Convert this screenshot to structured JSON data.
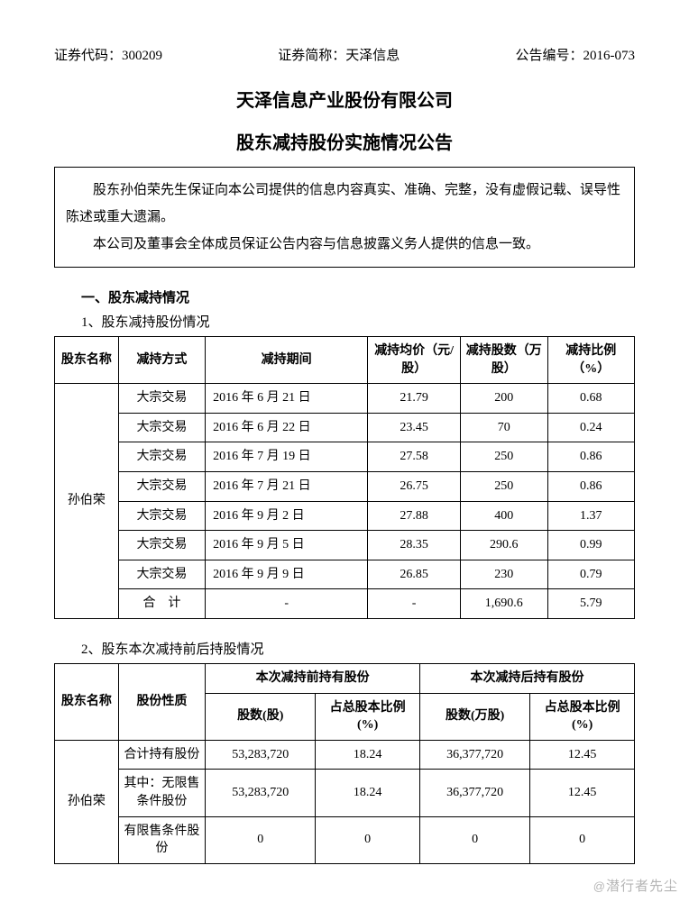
{
  "header": {
    "code_label": "证券代码：",
    "code_value": "300209",
    "short_label": "证券简称：",
    "short_value": "天泽信息",
    "ann_label": "公告编号：",
    "ann_value": "2016-073"
  },
  "titles": {
    "company": "天泽信息产业股份有限公司",
    "subject": "股东减持股份实施情况公告"
  },
  "statement": {
    "p1": "股东孙伯荣先生保证向本公司提供的信息内容真实、准确、完整，没有虚假记载、误导性陈述或重大遗漏。",
    "p2": "本公司及董事会全体成员保证公告内容与信息披露义务人提供的信息一致。"
  },
  "section1": {
    "heading": "一、股东减持情况",
    "sub1": "1、股东减持股份情况",
    "sub2": "2、股东本次减持前后持股情况"
  },
  "table1": {
    "cols": {
      "c1": "股东名称",
      "c2": "减持方式",
      "c3": "减持期间",
      "c4": "减持均价（元/股）",
      "c5": "减持股数（万股）",
      "c6": "减持比例（%）"
    },
    "shareholder": "孙伯荣",
    "rows": [
      {
        "method": "大宗交易",
        "period": "2016 年 6 月 21 日",
        "price": "21.79",
        "shares": "200",
        "ratio": "0.68"
      },
      {
        "method": "大宗交易",
        "period": "2016 年 6 月 22 日",
        "price": "23.45",
        "shares": "70",
        "ratio": "0.24"
      },
      {
        "method": "大宗交易",
        "period": "2016 年 7 月 19 日",
        "price": "27.58",
        "shares": "250",
        "ratio": "0.86"
      },
      {
        "method": "大宗交易",
        "period": "2016 年 7 月 21 日",
        "price": "26.75",
        "shares": "250",
        "ratio": "0.86"
      },
      {
        "method": "大宗交易",
        "period": "2016 年 9 月 2 日",
        "price": "27.88",
        "shares": "400",
        "ratio": "1.37"
      },
      {
        "method": "大宗交易",
        "period": "2016 年 9 月 5 日",
        "price": "28.35",
        "shares": "290.6",
        "ratio": "0.99"
      },
      {
        "method": "大宗交易",
        "period": "2016 年 9 月 9 日",
        "price": "26.85",
        "shares": "230",
        "ratio": "0.79"
      }
    ],
    "total": {
      "label": "合　计",
      "price": "-",
      "period": "-",
      "shares": "1,690.6",
      "ratio": "5.79"
    }
  },
  "table2": {
    "cols": {
      "c1": "股东名称",
      "c2": "股份性质",
      "before": "本次减持前持有股份",
      "after": "本次减持后持有股份",
      "shares": "股数(股)",
      "shares_wan": "股数(万股)",
      "ratio": "占总股本比例(%)"
    },
    "shareholder": "孙伯荣",
    "rows": [
      {
        "nature": "合计持有股份",
        "b_shares": "53,283,720",
        "b_ratio": "18.24",
        "a_shares": "36,377,720",
        "a_ratio": "12.45"
      },
      {
        "nature": "其中：无限售条件股份",
        "b_shares": "53,283,720",
        "b_ratio": "18.24",
        "a_shares": "36,377,720",
        "a_ratio": "12.45"
      },
      {
        "nature": "有限售条件股份",
        "b_shares": "0",
        "b_ratio": "0",
        "a_shares": "0",
        "a_ratio": "0"
      }
    ]
  },
  "watermark": "潜行者先尘"
}
